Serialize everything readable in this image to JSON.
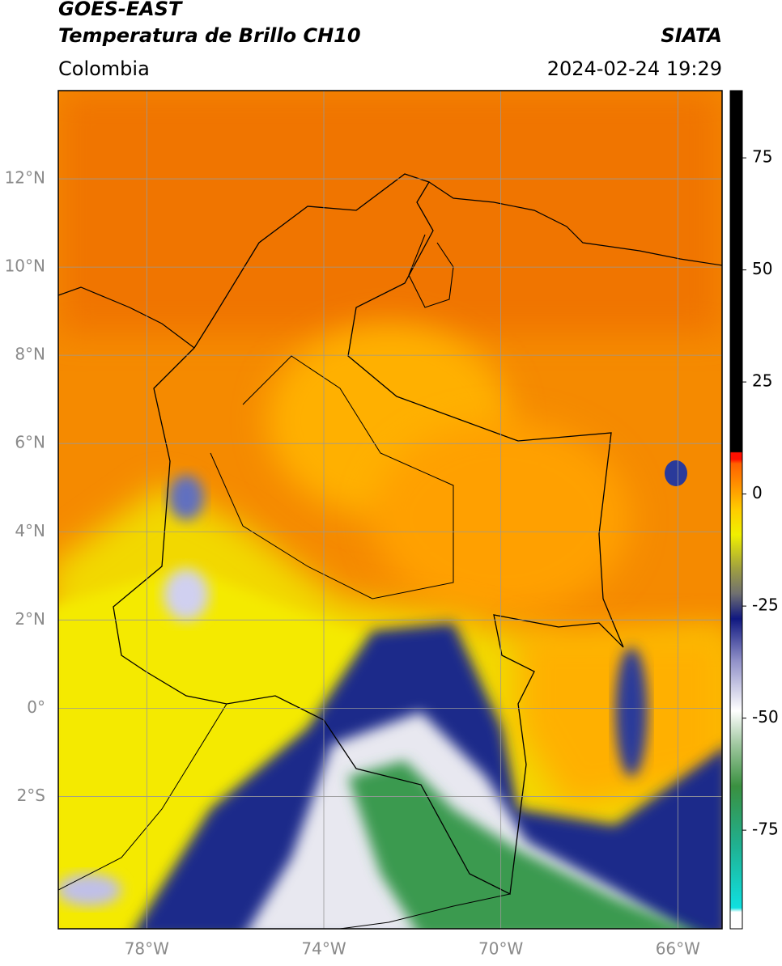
{
  "map": {
    "title_line1": "GOES-EAST",
    "title_line2": "Temperatura de Brillo CH10",
    "source": "SIATA",
    "region": "Colombia",
    "timestamp": "2024-02-24 19:29",
    "lat_lim": [
      -5,
      14
    ],
    "lon_lim": [
      -80,
      -65
    ],
    "lat_ticks": [
      {
        "value": 12,
        "label": "12°N"
      },
      {
        "value": 10,
        "label": "10°N"
      },
      {
        "value": 8,
        "label": "8°N"
      },
      {
        "value": 6,
        "label": "6°N"
      },
      {
        "value": 4,
        "label": "4°N"
      },
      {
        "value": 2,
        "label": "2°N"
      },
      {
        "value": 0,
        "label": "0°"
      },
      {
        "value": -2,
        "label": "2°S"
      }
    ],
    "lon_ticks": [
      {
        "value": -78,
        "label": "78°W"
      },
      {
        "value": -74,
        "label": "74°W"
      },
      {
        "value": -70,
        "label": "70°W"
      },
      {
        "value": -66,
        "label": "66°W"
      }
    ],
    "colorbar": {
      "lim": [
        -97,
        90
      ],
      "ticks": [
        75,
        50,
        25,
        0,
        -25,
        -50,
        -75
      ]
    }
  }
}
